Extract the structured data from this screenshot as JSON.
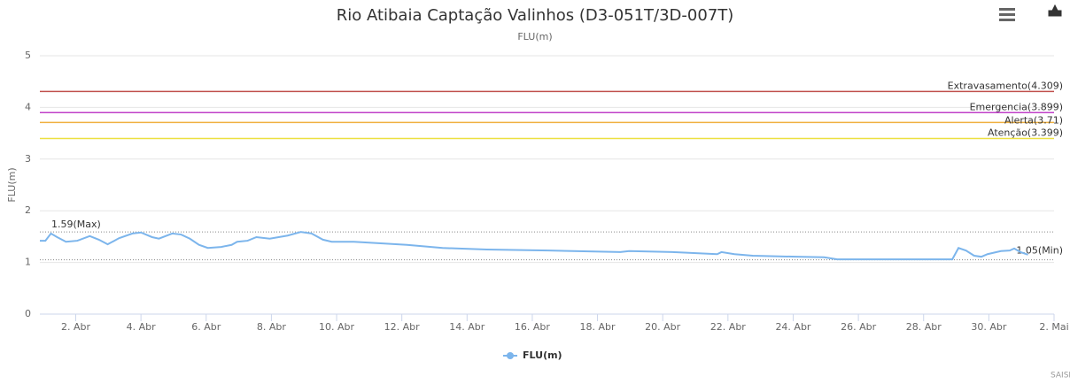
{
  "chart_data": {
    "type": "line",
    "title": "Rio Atibaia Captação Valinhos (D3-051T/3D-007T)",
    "subtitle": "FLU(m)",
    "y_axis_label": "FLU(m)",
    "credits": "SAISP",
    "xlim": [
      0.9,
      32
    ],
    "xticks": [
      {
        "value": 2,
        "label": "2. Abr"
      },
      {
        "value": 4,
        "label": "4. Abr"
      },
      {
        "value": 6,
        "label": "6. Abr"
      },
      {
        "value": 8,
        "label": "8. Abr"
      },
      {
        "value": 10,
        "label": "10. Abr"
      },
      {
        "value": 12,
        "label": "12. Abr"
      },
      {
        "value": 14,
        "label": "14. Abr"
      },
      {
        "value": 16,
        "label": "16. Abr"
      },
      {
        "value": 18,
        "label": "18. Abr"
      },
      {
        "value": 20,
        "label": "20. Abr"
      },
      {
        "value": 22,
        "label": "22. Abr"
      },
      {
        "value": 24,
        "label": "24. Abr"
      },
      {
        "value": 26,
        "label": "26. Abr"
      },
      {
        "value": 28,
        "label": "28. Abr"
      },
      {
        "value": 30,
        "label": "30. Abr"
      },
      {
        "value": 32,
        "label": "2. Mai"
      }
    ],
    "ylim": [
      0,
      5
    ],
    "yticks": [
      0,
      1,
      2,
      3,
      4,
      5
    ],
    "grid": true,
    "legend": "bottom",
    "plot_lines": [
      {
        "label": "Extravasamento(4.309)",
        "value": 4.309,
        "color": "#c0504d"
      },
      {
        "label": "Emergencia(3.899)",
        "value": 3.899,
        "color": "#c040c8"
      },
      {
        "label": "Alerta(3.71)",
        "value": 3.71,
        "color": "#f0b040"
      },
      {
        "label": "Atenção(3.399)",
        "value": 3.399,
        "color": "#ece040"
      }
    ],
    "max_line": {
      "label": "1.59(Max)",
      "value": 1.59
    },
    "min_line": {
      "label": "1.05(Min)",
      "value": 1.05
    },
    "series": [
      {
        "name": "FLU(m)",
        "color": "#7cb5ec",
        "x": [
          0.9,
          1.07,
          1.24,
          1.43,
          1.7,
          2.05,
          2.43,
          2.71,
          2.98,
          3.33,
          3.74,
          4.0,
          4.34,
          4.55,
          4.96,
          5.23,
          5.5,
          5.78,
          6.05,
          6.46,
          6.78,
          6.95,
          7.27,
          7.54,
          7.95,
          8.5,
          8.9,
          9.23,
          9.58,
          9.85,
          10.53,
          11.35,
          12.16,
          13.25,
          14.6,
          16.5,
          18.7,
          18.97,
          20.3,
          21.67,
          21.8,
          22.2,
          22.76,
          24.1,
          24.95,
          25.35,
          26.84,
          28.88,
          29.07,
          29.3,
          29.55,
          29.77,
          29.96,
          30.37,
          30.64,
          30.78,
          30.97,
          31.2
        ],
        "values": [
          1.42,
          1.42,
          1.56,
          1.49,
          1.4,
          1.42,
          1.51,
          1.44,
          1.35,
          1.47,
          1.56,
          1.58,
          1.49,
          1.46,
          1.56,
          1.54,
          1.46,
          1.34,
          1.28,
          1.3,
          1.34,
          1.4,
          1.42,
          1.49,
          1.46,
          1.52,
          1.59,
          1.56,
          1.44,
          1.4,
          1.4,
          1.37,
          1.34,
          1.28,
          1.25,
          1.23,
          1.2,
          1.22,
          1.2,
          1.16,
          1.2,
          1.16,
          1.13,
          1.11,
          1.1,
          1.06,
          1.06,
          1.06,
          1.28,
          1.23,
          1.13,
          1.11,
          1.16,
          1.22,
          1.23,
          1.27,
          1.2,
          1.15
        ]
      }
    ]
  }
}
